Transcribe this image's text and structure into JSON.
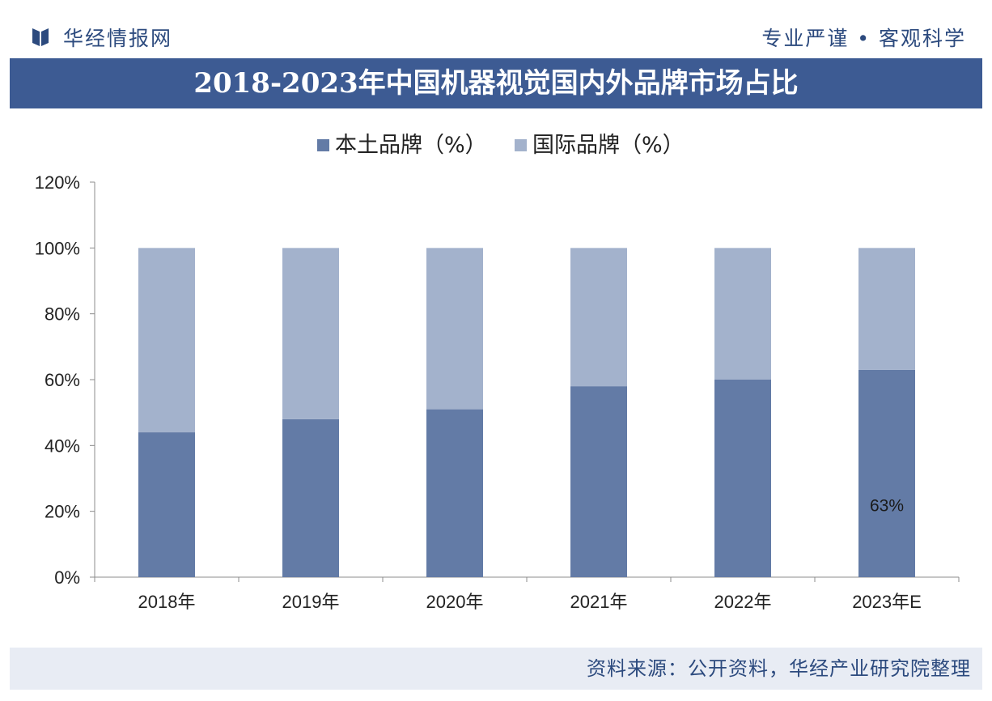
{
  "header": {
    "brand_name": "华经情报网",
    "slogan": "专业严谨 • 客观科学",
    "logo_icon": "bookmark-logo-icon"
  },
  "title": "2018-2023年中国机器视觉国内外品牌市场占比",
  "footer": {
    "source": "资料来源：公开资料，华经产业研究院整理"
  },
  "colors": {
    "title_bar": "#3d5b93",
    "domestic": "#637ba6",
    "international": "#a3b2cc",
    "brand_text": "#2c4a7e",
    "footer_bg": "#e8ecf4"
  },
  "chart_data": {
    "type": "bar",
    "stacked": true,
    "categories": [
      "2018年",
      "2019年",
      "2020年",
      "2021年",
      "2022年",
      "2023年E"
    ],
    "series": [
      {
        "name": "本土品牌（%）",
        "values": [
          44,
          48,
          51,
          58,
          60,
          63
        ],
        "color": "#637ba6"
      },
      {
        "name": "国际品牌（%）",
        "values": [
          56,
          52,
          49,
          42,
          40,
          37
        ],
        "color": "#a3b2cc"
      }
    ],
    "yticks": [
      "0%",
      "20%",
      "40%",
      "60%",
      "80%",
      "100%",
      "120%"
    ],
    "ylim": [
      0,
      120
    ],
    "grid": false,
    "legend_position": "top-center",
    "annotations": [
      {
        "category": "2023年E",
        "series": "本土品牌（%）",
        "text": "63%"
      }
    ]
  }
}
